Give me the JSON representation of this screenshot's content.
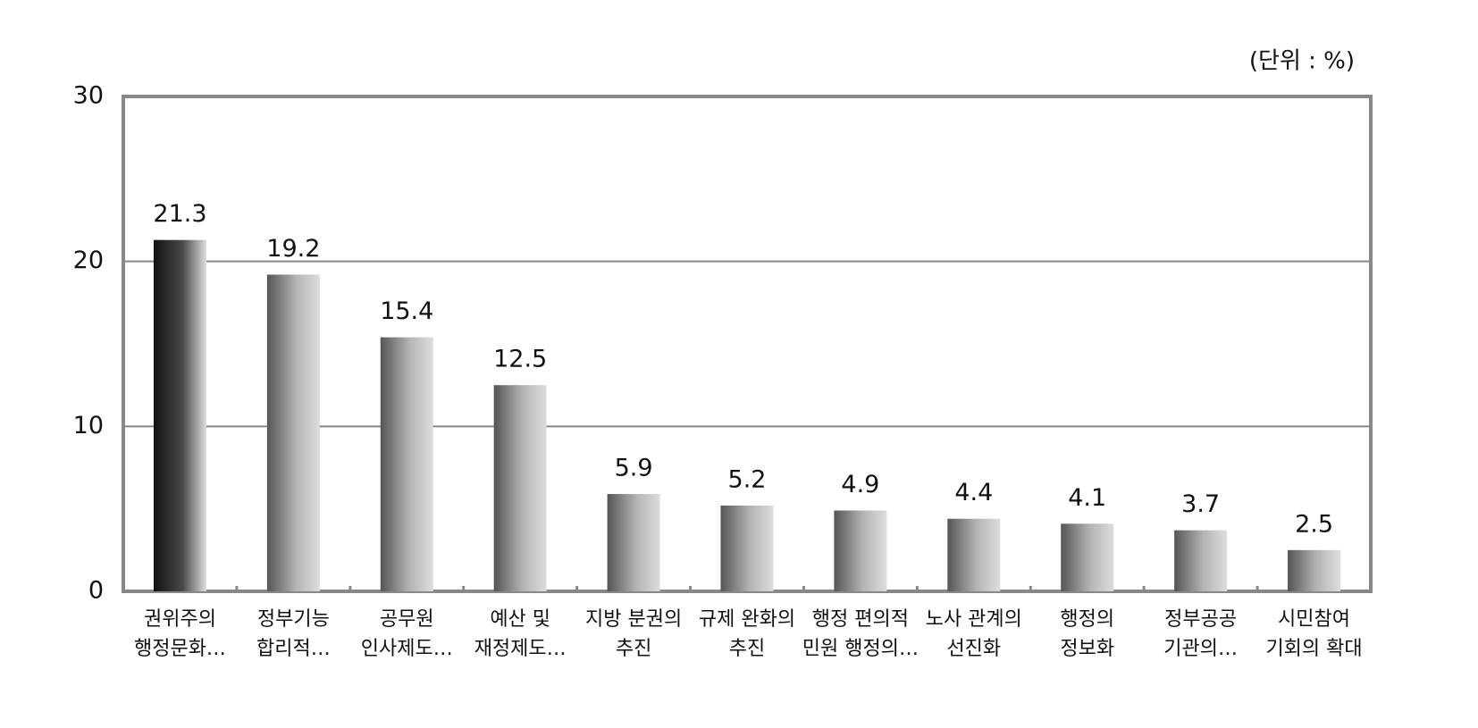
{
  "chart_data": {
    "type": "bar",
    "unit_label": "(단위 : %)",
    "categories": [
      [
        "권위주의",
        "행정문화…"
      ],
      [
        "정부기능",
        "합리적…"
      ],
      [
        "공무원",
        "인사제도…"
      ],
      [
        "예산 및",
        "재정제도…"
      ],
      [
        "지방 분권의",
        "추진"
      ],
      [
        "규제 완화의",
        "추진"
      ],
      [
        "행정 편의적",
        "민원 행정의…"
      ],
      [
        "노사 관계의",
        "선진화"
      ],
      [
        "행정의",
        "정보화"
      ],
      [
        "정부공공",
        "기관의…"
      ],
      [
        "시민참여",
        "기회의 확대"
      ]
    ],
    "values": [
      21.3,
      19.2,
      15.4,
      12.5,
      5.9,
      5.2,
      4.9,
      4.4,
      4.1,
      3.7,
      2.5
    ],
    "colors": [
      "#4a4a4a",
      "#b4b4b4",
      "#b4b4b4",
      "#b4b4b4",
      "#b4b4b4",
      "#b4b4b4",
      "#b4b4b4",
      "#b4b4b4",
      "#b4b4b4",
      "#b4b4b4",
      "#b4b4b4"
    ],
    "ylim": [
      0,
      30
    ],
    "yticks": [
      0,
      10,
      20,
      30
    ],
    "grid": true
  }
}
